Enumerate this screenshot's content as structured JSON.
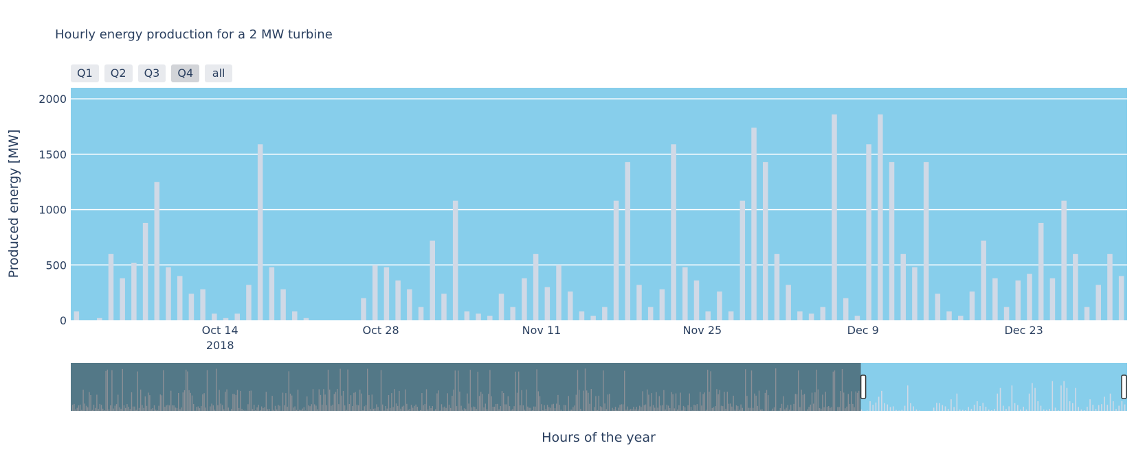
{
  "chart_data": {
    "type": "bar",
    "title": "Hourly energy production for a 2 MW turbine",
    "xlabel": "Hours of the year",
    "ylabel": "Produced energy [MW]",
    "x_range": [
      "2018-10-01",
      "2018-12-31"
    ],
    "ylim": [
      0,
      2100
    ],
    "y_ticks": [
      0,
      500,
      1000,
      1500,
      2000
    ],
    "x_tick_labels": [
      {
        "date": "2018-10-14",
        "label": "Oct 14",
        "sublabel": "2018"
      },
      {
        "date": "2018-10-28",
        "label": "Oct 28"
      },
      {
        "date": "2018-11-11",
        "label": "Nov 11"
      },
      {
        "date": "2018-11-25",
        "label": "Nov 25"
      },
      {
        "date": "2018-12-09",
        "label": "Dec 9"
      },
      {
        "date": "2018-12-23",
        "label": "Dec 23"
      }
    ],
    "grid": true,
    "colors": {
      "plot_bg": "#87ceeb",
      "bar": "#d0d9e6",
      "grid": "#ffffff",
      "rangeslider_mask": "#537887",
      "rangeslider_bars": "#8a8f96"
    },
    "series": [
      {
        "points": [
          [
            "2018-10-01",
            80
          ],
          [
            "2018-10-03",
            20
          ],
          [
            "2018-10-04",
            600
          ],
          [
            "2018-10-05",
            380
          ],
          [
            "2018-10-06",
            520
          ],
          [
            "2018-10-07",
            880
          ],
          [
            "2018-10-08",
            1250
          ],
          [
            "2018-10-09",
            480
          ],
          [
            "2018-10-10",
            400
          ],
          [
            "2018-10-11",
            240
          ],
          [
            "2018-10-12",
            280
          ],
          [
            "2018-10-13",
            60
          ],
          [
            "2018-10-14",
            20
          ],
          [
            "2018-10-15",
            60
          ],
          [
            "2018-10-16",
            320
          ],
          [
            "2018-10-17",
            1590
          ],
          [
            "2018-10-18",
            480
          ],
          [
            "2018-10-19",
            280
          ],
          [
            "2018-10-20",
            80
          ],
          [
            "2018-10-21",
            20
          ],
          [
            "2018-10-22",
            0
          ],
          [
            "2018-10-23",
            0
          ],
          [
            "2018-10-24",
            0
          ],
          [
            "2018-10-25",
            0
          ],
          [
            "2018-10-26",
            200
          ],
          [
            "2018-10-27",
            500
          ],
          [
            "2018-10-28",
            480
          ],
          [
            "2018-10-29",
            360
          ],
          [
            "2018-10-30",
            280
          ],
          [
            "2018-10-31",
            120
          ],
          [
            "2018-11-01",
            720
          ],
          [
            "2018-11-02",
            240
          ],
          [
            "2018-11-03",
            1080
          ],
          [
            "2018-11-04",
            80
          ],
          [
            "2018-11-05",
            60
          ],
          [
            "2018-11-06",
            40
          ],
          [
            "2018-11-07",
            240
          ],
          [
            "2018-11-08",
            120
          ],
          [
            "2018-11-09",
            380
          ],
          [
            "2018-11-10",
            600
          ],
          [
            "2018-11-11",
            300
          ],
          [
            "2018-11-12",
            500
          ],
          [
            "2018-11-13",
            260
          ],
          [
            "2018-11-14",
            80
          ],
          [
            "2018-11-15",
            40
          ],
          [
            "2018-11-16",
            120
          ],
          [
            "2018-11-17",
            1080
          ],
          [
            "2018-11-18",
            1430
          ],
          [
            "2018-11-19",
            320
          ],
          [
            "2018-11-20",
            120
          ],
          [
            "2018-11-21",
            280
          ],
          [
            "2018-11-22",
            1590
          ],
          [
            "2018-11-23",
            480
          ],
          [
            "2018-11-24",
            360
          ],
          [
            "2018-11-25",
            80
          ],
          [
            "2018-11-26",
            260
          ],
          [
            "2018-11-27",
            80
          ],
          [
            "2018-11-28",
            1080
          ],
          [
            "2018-11-29",
            1740
          ],
          [
            "2018-11-30",
            1430
          ],
          [
            "2018-12-01",
            600
          ],
          [
            "2018-12-02",
            320
          ],
          [
            "2018-12-03",
            80
          ],
          [
            "2018-12-04",
            60
          ],
          [
            "2018-12-05",
            120
          ],
          [
            "2018-12-06",
            1860
          ],
          [
            "2018-12-07",
            200
          ],
          [
            "2018-12-08",
            40
          ],
          [
            "2018-12-09",
            1590
          ],
          [
            "2018-12-10",
            1860
          ],
          [
            "2018-12-11",
            1430
          ],
          [
            "2018-12-12",
            600
          ],
          [
            "2018-12-13",
            480
          ],
          [
            "2018-12-14",
            1430
          ],
          [
            "2018-12-15",
            240
          ],
          [
            "2018-12-16",
            80
          ],
          [
            "2018-12-17",
            40
          ],
          [
            "2018-12-18",
            260
          ],
          [
            "2018-12-19",
            720
          ],
          [
            "2018-12-20",
            380
          ],
          [
            "2018-12-21",
            120
          ],
          [
            "2018-12-22",
            360
          ],
          [
            "2018-12-23",
            420
          ],
          [
            "2018-12-24",
            880
          ],
          [
            "2018-12-25",
            380
          ],
          [
            "2018-12-26",
            1080
          ],
          [
            "2018-12-27",
            600
          ],
          [
            "2018-12-28",
            120
          ],
          [
            "2018-12-29",
            320
          ],
          [
            "2018-12-30",
            600
          ],
          [
            "2018-12-31",
            400
          ]
        ]
      }
    ],
    "rangeslider": {
      "selected_range": [
        "2018-10-01",
        "2018-12-31"
      ],
      "full_range": [
        "2018-01-01",
        "2018-12-31"
      ]
    }
  },
  "buttons": [
    {
      "label": "Q1",
      "active": false
    },
    {
      "label": "Q2",
      "active": false
    },
    {
      "label": "Q3",
      "active": false
    },
    {
      "label": "Q4",
      "active": true
    },
    {
      "label": "all",
      "active": false
    }
  ]
}
